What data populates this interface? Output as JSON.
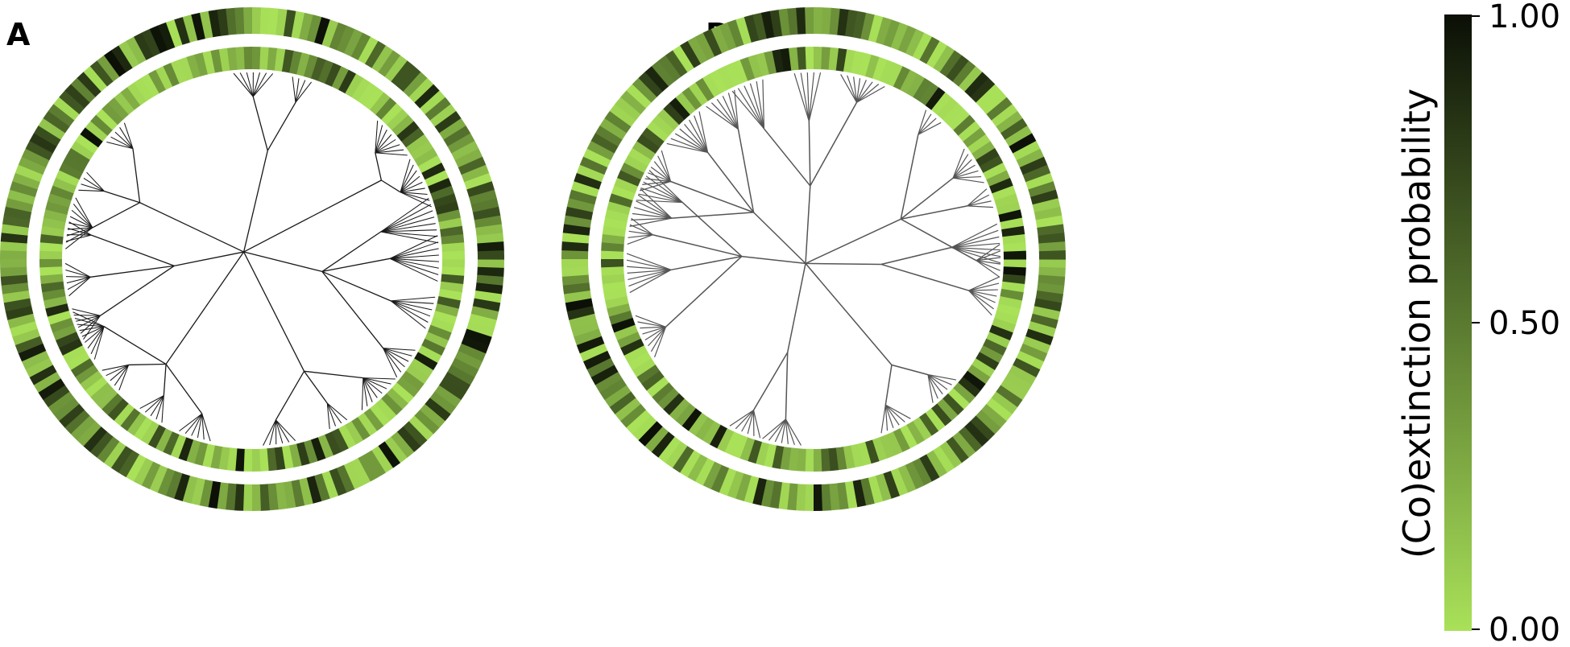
{
  "panels": [
    {
      "label": "A",
      "seed": 11,
      "tree_color": "#1a1a1a",
      "tree_width": 1.3
    },
    {
      "label": "B",
      "seed": 37,
      "tree_color": "#555555",
      "tree_width": 1.5
    }
  ],
  "colorbar": {
    "title": "(Co)extinction probability",
    "ticks": [
      "0.00",
      "0.50",
      "1.00"
    ],
    "tick_values": [
      0,
      0.5,
      1
    ],
    "color_low": "#a9e159",
    "color_mid": "#5a7a30",
    "color_high": "#0b0f06"
  }
}
